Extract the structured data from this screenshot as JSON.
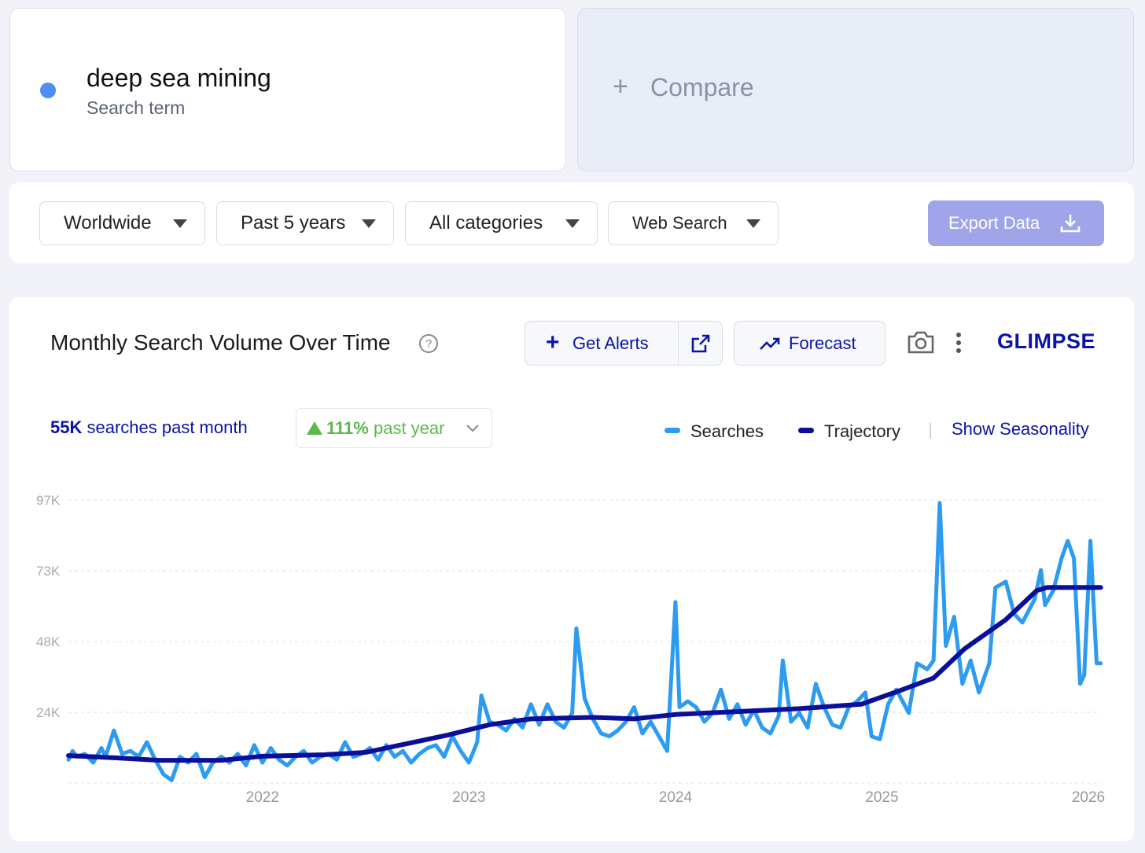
{
  "term": {
    "name": "deep sea mining",
    "kind": "Search term"
  },
  "compare": "Compare",
  "filters": [
    "Worldwide",
    "Past 5 years",
    "All categories",
    "Web Search"
  ],
  "export": "Export Data",
  "panel": {
    "title": "Monthly Search Volume Over Time",
    "alerts": "Get Alerts",
    "forecast": "Forecast",
    "logo": "GLIMPSE",
    "volume": "55K",
    "volume_text": "searches past month",
    "change": "111%",
    "change_text": "past year",
    "seasonality": "Show Seasonality"
  },
  "chart_data": {
    "type": "line",
    "xlim": [
      2021.06,
      2026.08
    ],
    "xticks": [
      2022,
      2023,
      2024,
      2025,
      2026
    ],
    "ylim": [
      0,
      97000
    ],
    "yticks": [
      {
        "value": 24250,
        "label": "24K"
      },
      {
        "value": 48500,
        "label": "48K"
      },
      {
        "value": 72750,
        "label": "73K"
      },
      {
        "value": 97000,
        "label": "97K"
      }
    ],
    "grid": true,
    "series": [
      {
        "name": "Searches",
        "color": "#2d9bf0",
        "width": 5,
        "x": [
          2021.06,
          2021.08,
          2021.1,
          2021.14,
          2021.18,
          2021.22,
          2021.24,
          2021.28,
          2021.32,
          2021.36,
          2021.4,
          2021.44,
          2021.48,
          2021.52,
          2021.56,
          2021.6,
          2021.64,
          2021.68,
          2021.72,
          2021.76,
          2021.8,
          2021.84,
          2021.88,
          2021.92,
          2021.96,
          2022,
          2022.04,
          2022.08,
          2022.12,
          2022.16,
          2022.2,
          2022.24,
          2022.28,
          2022.32,
          2022.36,
          2022.4,
          2022.44,
          2022.48,
          2022.52,
          2022.56,
          2022.6,
          2022.64,
          2022.68,
          2022.72,
          2022.76,
          2022.8,
          2022.84,
          2022.88,
          2022.92,
          2022.96,
          2023,
          2023.04,
          2023.06,
          2023.1,
          2023.14,
          2023.18,
          2023.22,
          2023.26,
          2023.3,
          2023.34,
          2023.38,
          2023.42,
          2023.46,
          2023.5,
          2023.52,
          2023.56,
          2023.6,
          2023.64,
          2023.68,
          2023.72,
          2023.76,
          2023.8,
          2023.84,
          2023.88,
          2023.92,
          2023.96,
          2024,
          2024.02,
          2024.06,
          2024.1,
          2024.14,
          2024.18,
          2024.22,
          2024.26,
          2024.3,
          2024.34,
          2024.38,
          2024.42,
          2024.46,
          2024.5,
          2024.52,
          2024.56,
          2024.6,
          2024.64,
          2024.68,
          2024.72,
          2024.76,
          2024.8,
          2024.84,
          2024.88,
          2024.92,
          2024.95,
          2024.99,
          2025.03,
          2025.07,
          2025.13,
          2025.17,
          2025.22,
          2025.25,
          2025.28,
          2025.31,
          2025.35,
          2025.39,
          2025.43,
          2025.47,
          2025.52,
          2025.55,
          2025.6,
          2025.64,
          2025.68,
          2025.74,
          2025.77,
          2025.79,
          2025.83,
          2025.87,
          2025.9,
          2025.93,
          2025.96,
          2025.98,
          2026.01,
          2026.04,
          2026.06
        ],
        "values": [
          8000,
          11000,
          9000,
          10000,
          7000,
          12000,
          9000,
          18000,
          10000,
          11000,
          9000,
          14000,
          8000,
          3000,
          1000,
          9000,
          7000,
          10000,
          2000,
          7000,
          9000,
          7000,
          10000,
          6000,
          13000,
          7000,
          12000,
          8000,
          6000,
          9000,
          11000,
          7000,
          9000,
          10000,
          8000,
          14000,
          9000,
          10000,
          12000,
          8000,
          13000,
          9000,
          11000,
          7000,
          10000,
          12000,
          13000,
          9000,
          16000,
          11000,
          7000,
          14000,
          30000,
          21000,
          20000,
          18000,
          22000,
          19000,
          27000,
          20000,
          27000,
          21000,
          19000,
          24000,
          53000,
          29000,
          22000,
          17000,
          16000,
          18000,
          21000,
          26000,
          17000,
          21000,
          16000,
          11000,
          62000,
          26000,
          28000,
          26000,
          21000,
          24000,
          32000,
          22000,
          27000,
          20000,
          25000,
          19000,
          17000,
          23000,
          42000,
          21000,
          24000,
          19000,
          34000,
          26000,
          20000,
          19000,
          26000,
          28000,
          31000,
          16000,
          15000,
          27000,
          32000,
          24000,
          41000,
          39000,
          42000,
          96000,
          47000,
          57000,
          34000,
          42000,
          31000,
          41000,
          67000,
          69000,
          58000,
          55000,
          63000,
          73000,
          61000,
          66000,
          77000,
          83000,
          77000,
          34000,
          37000,
          83000,
          41000,
          41000
        ]
      },
      {
        "name": "Trajectory",
        "color": "#0a0f9a",
        "width": 6,
        "x": [
          2021.06,
          2021.3,
          2021.5,
          2021.8,
          2022,
          2022.3,
          2022.5,
          2022.7,
          2022.9,
          2023.1,
          2023.3,
          2023.6,
          2023.8,
          2024,
          2024.3,
          2024.6,
          2024.9,
          2025.1,
          2025.25,
          2025.4,
          2025.6,
          2025.75,
          2025.8,
          2026.06
        ],
        "values": [
          9400,
          8600,
          7800,
          7800,
          9200,
          9700,
          10500,
          13500,
          16500,
          20000,
          22000,
          22500,
          22000,
          23500,
          24500,
          25500,
          27000,
          32000,
          36000,
          46000,
          56000,
          66000,
          67000,
          67000
        ]
      }
    ]
  }
}
